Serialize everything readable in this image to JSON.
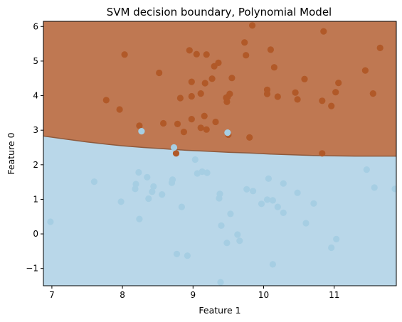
{
  "chart_data": {
    "type": "scatter",
    "title": "SVM decision boundary, Polynomial Model",
    "xlabel": "Feature 1",
    "ylabel": "Feature 0",
    "xlim": [
      6.88,
      11.88
    ],
    "ylim": [
      -1.5,
      6.15
    ],
    "xticks": [
      7,
      8,
      9,
      10,
      11
    ],
    "yticks": [
      -1,
      0,
      1,
      2,
      3,
      4,
      5,
      6
    ],
    "grid": false,
    "legend": "none",
    "colors": {
      "region_upper": "#bf7852",
      "region_lower": "#b9d7e9",
      "class_upper_points": "#b15928",
      "class_lower_points": "#a6cee3"
    },
    "boundary": {
      "x": [
        6.88,
        7.2,
        7.5,
        7.8,
        8.0,
        8.3,
        8.6,
        8.9,
        9.2,
        9.5,
        9.8,
        10.1,
        10.4,
        10.7,
        11.0,
        11.3,
        11.6,
        11.88
      ],
      "y": [
        2.83,
        2.74,
        2.66,
        2.59,
        2.55,
        2.5,
        2.46,
        2.42,
        2.39,
        2.36,
        2.34,
        2.31,
        2.29,
        2.27,
        2.26,
        2.25,
        2.25,
        2.25
      ]
    },
    "series": [
      {
        "color": "#b15928",
        "points": [
          [
            7.77,
            3.87
          ],
          [
            7.96,
            3.6
          ],
          [
            8.03,
            5.19
          ],
          [
            8.24,
            3.13
          ],
          [
            8.52,
            4.66
          ],
          [
            8.58,
            3.2
          ],
          [
            8.76,
            2.33
          ],
          [
            8.78,
            3.18
          ],
          [
            8.82,
            3.93
          ],
          [
            8.87,
            2.95
          ],
          [
            8.95,
            5.31
          ],
          [
            8.98,
            3.32
          ],
          [
            8.98,
            3.98
          ],
          [
            8.98,
            4.4
          ],
          [
            9.05,
            5.2
          ],
          [
            9.11,
            4.06
          ],
          [
            9.11,
            3.07
          ],
          [
            9.16,
            3.41
          ],
          [
            9.17,
            4.36
          ],
          [
            9.19,
            5.19
          ],
          [
            9.19,
            3.02
          ],
          [
            9.27,
            4.49
          ],
          [
            9.3,
            4.85
          ],
          [
            9.32,
            3.24
          ],
          [
            9.36,
            4.95
          ],
          [
            9.47,
            3.94
          ],
          [
            9.48,
            3.82
          ],
          [
            9.49,
            3.96
          ],
          [
            9.5,
            2.87
          ],
          [
            9.52,
            4.05
          ],
          [
            9.55,
            4.51
          ],
          [
            9.73,
            5.54
          ],
          [
            9.75,
            5.17
          ],
          [
            9.8,
            2.79
          ],
          [
            9.84,
            6.03
          ],
          [
            10.05,
            4.17
          ],
          [
            10.05,
            4.05
          ],
          [
            10.1,
            5.33
          ],
          [
            10.15,
            4.82
          ],
          [
            10.2,
            3.97
          ],
          [
            10.45,
            4.09
          ],
          [
            10.48,
            3.89
          ],
          [
            10.58,
            4.48
          ],
          [
            10.83,
            3.85
          ],
          [
            10.83,
            2.33
          ],
          [
            10.85,
            5.86
          ],
          [
            10.96,
            3.7
          ],
          [
            11.02,
            4.1
          ],
          [
            11.06,
            4.37
          ],
          [
            11.44,
            4.73
          ],
          [
            11.55,
            4.06
          ],
          [
            11.65,
            5.38
          ]
        ]
      },
      {
        "color": "#a6cee3",
        "points": [
          [
            6.98,
            0.35
          ],
          [
            7.6,
            1.51
          ],
          [
            7.98,
            0.93
          ],
          [
            8.18,
            1.3
          ],
          [
            8.19,
            1.44
          ],
          [
            8.23,
            1.78
          ],
          [
            8.24,
            0.43
          ],
          [
            8.27,
            2.97
          ],
          [
            8.35,
            1.64
          ],
          [
            8.37,
            1.02
          ],
          [
            8.42,
            1.22
          ],
          [
            8.44,
            1.37
          ],
          [
            8.56,
            1.14
          ],
          [
            8.7,
            1.48
          ],
          [
            8.71,
            1.57
          ],
          [
            8.73,
            2.5
          ],
          [
            8.77,
            -0.58
          ],
          [
            8.84,
            0.78
          ],
          [
            8.92,
            -0.63
          ],
          [
            9.03,
            2.15
          ],
          [
            9.06,
            1.75
          ],
          [
            9.13,
            1.8
          ],
          [
            9.2,
            1.77
          ],
          [
            9.37,
            1.03
          ],
          [
            9.38,
            1.16
          ],
          [
            9.39,
            -1.4
          ],
          [
            9.4,
            0.24
          ],
          [
            9.48,
            -0.26
          ],
          [
            9.49,
            2.93
          ],
          [
            9.53,
            0.58
          ],
          [
            9.63,
            -0.02
          ],
          [
            9.66,
            -0.2
          ],
          [
            9.76,
            1.29
          ],
          [
            9.85,
            1.24
          ],
          [
            9.97,
            0.87
          ],
          [
            10.05,
            0.99
          ],
          [
            10.07,
            1.6
          ],
          [
            10.13,
            -0.88
          ],
          [
            10.13,
            0.97
          ],
          [
            10.2,
            0.78
          ],
          [
            10.28,
            1.46
          ],
          [
            10.28,
            0.61
          ],
          [
            10.48,
            1.19
          ],
          [
            10.6,
            0.31
          ],
          [
            10.71,
            0.88
          ],
          [
            10.96,
            -0.4
          ],
          [
            11.03,
            -0.15
          ],
          [
            11.46,
            1.86
          ],
          [
            11.57,
            1.34
          ],
          [
            11.86,
            1.3
          ]
        ]
      }
    ]
  }
}
